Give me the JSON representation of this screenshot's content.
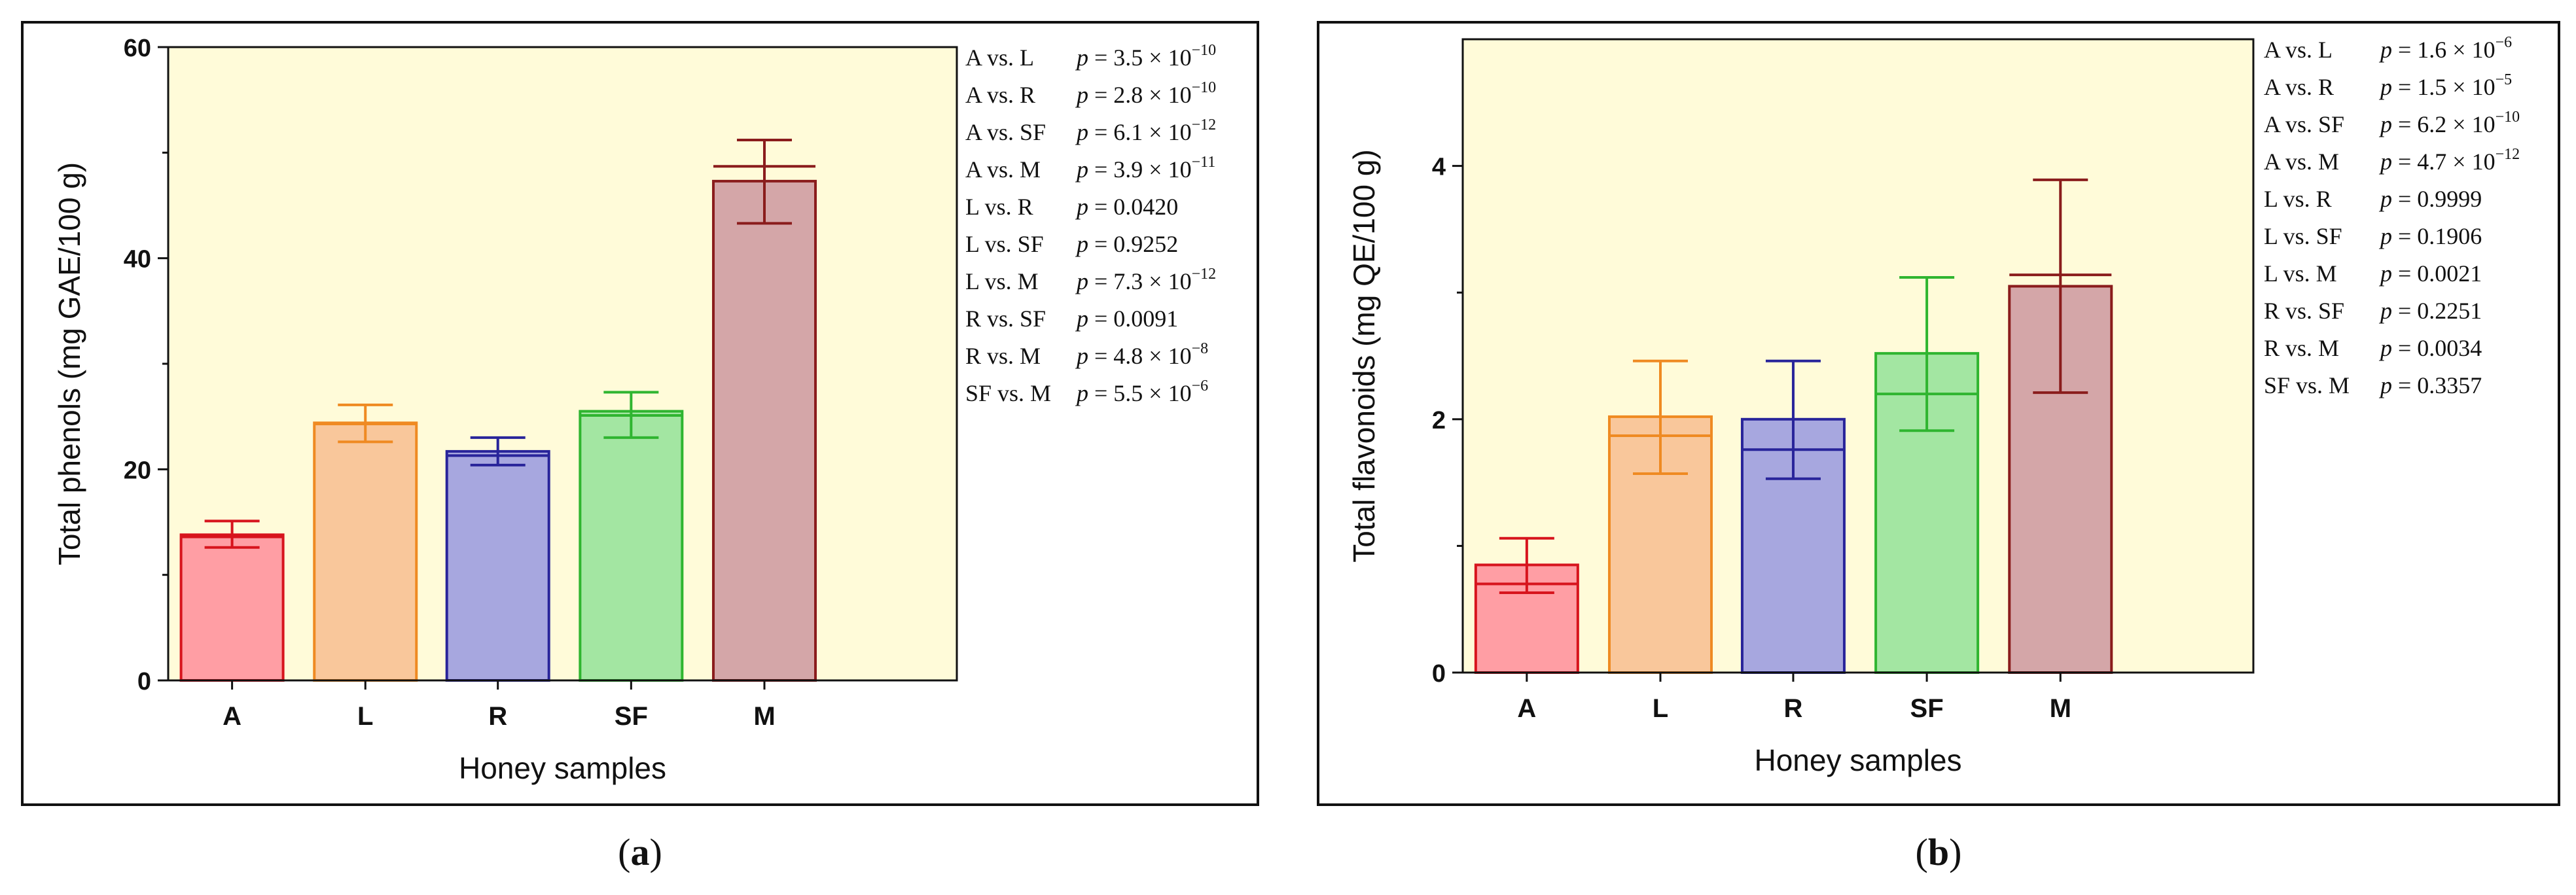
{
  "chart_data": [
    {
      "type": "bar",
      "panel_label": "a",
      "title": "",
      "xlabel": "Honey samples",
      "ylabel": "Total phenols (mg GAE/100 g)",
      "ylim": [
        0,
        60
      ],
      "yticks": [
        0,
        20,
        40,
        60
      ],
      "categories": [
        "A",
        "L",
        "R",
        "SF",
        "M"
      ],
      "values": [
        13.8,
        24.4,
        21.7,
        25.5,
        47.3
      ],
      "medians": [
        13.6,
        24.3,
        21.3,
        25.1,
        48.7
      ],
      "err_low": [
        12.6,
        22.6,
        20.4,
        23.0,
        43.3
      ],
      "err_high": [
        15.1,
        26.1,
        23.0,
        27.3,
        51.2
      ],
      "colors_fill": [
        "#ff9ea4",
        "#f9c79b",
        "#a7a7df",
        "#a3e6a2",
        "#d4a6a8"
      ],
      "colors_edge": [
        "#d7141d",
        "#ef8a22",
        "#28249a",
        "#2fb530",
        "#8a1c1c"
      ],
      "comparisons": [
        {
          "pair": "A vs. L",
          "p_sym": "p",
          "p_val": "= 3.5 × 10",
          "exp": "−10"
        },
        {
          "pair": "A vs. R",
          "p_sym": "p",
          "p_val": "= 2.8 × 10",
          "exp": "−10"
        },
        {
          "pair": "A vs. SF",
          "p_sym": "p",
          "p_val": "= 6.1 × 10",
          "exp": "−12"
        },
        {
          "pair": "A vs. M",
          "p_sym": "p",
          "p_val": "= 3.9 × 10",
          "exp": "−11"
        },
        {
          "pair": "L vs. R",
          "p_sym": "p",
          "p_val": "= 0.0420",
          "exp": ""
        },
        {
          "pair": "L vs. SF",
          "p_sym": "p",
          "p_val": "= 0.9252",
          "exp": ""
        },
        {
          "pair": "L vs. M",
          "p_sym": "p",
          "p_val": "= 7.3 × 10",
          "exp": "−12"
        },
        {
          "pair": "R vs. SF",
          "p_sym": "p",
          "p_val": "= 0.0091",
          "exp": ""
        },
        {
          "pair": "R vs. M",
          "p_sym": "p",
          "p_val": "= 4.8 × 10",
          "exp": "−8"
        },
        {
          "pair": "SF vs. M",
          "p_sym": "p",
          "p_val": "= 5.5 × 10",
          "exp": "−6"
        }
      ]
    },
    {
      "type": "bar",
      "panel_label": "b",
      "title": "",
      "xlabel": "Honey samples",
      "ylabel": "Total flavonoids (mg QE/100 g)",
      "ylim": [
        0,
        5
      ],
      "yticks": [
        0,
        2,
        4
      ],
      "categories": [
        "A",
        "L",
        "R",
        "SF",
        "M"
      ],
      "values": [
        0.85,
        2.02,
        2.0,
        2.52,
        3.05
      ],
      "medians": [
        0.7,
        1.87,
        1.76,
        2.2,
        3.14
      ],
      "err_low": [
        0.63,
        1.57,
        1.53,
        1.91,
        2.21
      ],
      "err_high": [
        1.06,
        2.46,
        2.46,
        3.12,
        3.89
      ],
      "colors_fill": [
        "#ff9ea4",
        "#f9c79b",
        "#a7a7df",
        "#a3e6a2",
        "#d4a6a8"
      ],
      "colors_edge": [
        "#d7141d",
        "#ef8a22",
        "#28249a",
        "#2fb530",
        "#8a1c1c"
      ],
      "comparisons": [
        {
          "pair": "A vs. L",
          "p_sym": "p",
          "p_val": "= 1.6 × 10",
          "exp": "−6"
        },
        {
          "pair": "A vs. R",
          "p_sym": "p",
          "p_val": "= 1.5 × 10",
          "exp": "−5"
        },
        {
          "pair": "A vs. SF",
          "p_sym": "p",
          "p_val": "= 6.2 × 10",
          "exp": "−10"
        },
        {
          "pair": "A vs. M",
          "p_sym": "p",
          "p_val": "= 4.7 × 10",
          "exp": "−12"
        },
        {
          "pair": "L vs. R",
          "p_sym": "p",
          "p_val": "= 0.9999",
          "exp": ""
        },
        {
          "pair": "L vs. SF",
          "p_sym": "p",
          "p_val": "= 0.1906",
          "exp": ""
        },
        {
          "pair": "L vs. M",
          "p_sym": "p",
          "p_val": "= 0.0021",
          "exp": ""
        },
        {
          "pair": "R vs. SF",
          "p_sym": "p",
          "p_val": "= 0.2251",
          "exp": ""
        },
        {
          "pair": "R vs. M",
          "p_sym": "p",
          "p_val": "= 0.0034",
          "exp": ""
        },
        {
          "pair": "SF vs. M",
          "p_sym": "p",
          "p_val": "= 0.3357",
          "exp": ""
        }
      ]
    }
  ],
  "theme": {
    "plot_bg": "#fffbd9",
    "frame": "#111111",
    "text": "#111111"
  }
}
